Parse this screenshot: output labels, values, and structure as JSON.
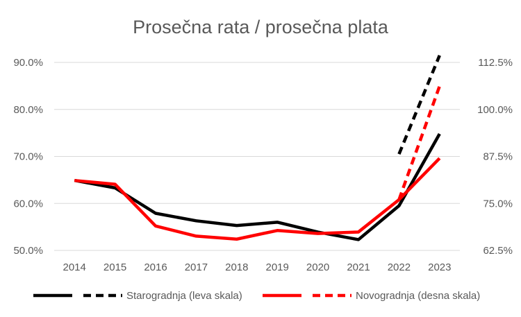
{
  "chart_data": {
    "type": "line",
    "title": "Prosečna rata / prosečna plata",
    "categories": [
      "2014",
      "2015",
      "2016",
      "2017",
      "2018",
      "2019",
      "2020",
      "2021",
      "2022",
      "2023"
    ],
    "y_left": {
      "ylim": [
        50,
        90
      ],
      "ticks": [
        50,
        60,
        70,
        80,
        90
      ],
      "tick_labels": [
        "50.0%",
        "60.0%",
        "70.0%",
        "80.0%",
        "90.0%"
      ]
    },
    "y_right": {
      "ylim": [
        62.5,
        112.5
      ],
      "ticks": [
        62.5,
        75,
        87.5,
        100,
        112.5
      ],
      "tick_labels": [
        "62.5%",
        "75.0%",
        "87.5%",
        "100.0%",
        "112.5%"
      ]
    },
    "grid": true,
    "legend_position": "bottom",
    "series": [
      {
        "name": "Starogradnja (leva skala)",
        "axis": "left",
        "color": "#000000",
        "values": [
          64.9,
          63.3,
          57.9,
          56.3,
          55.3,
          56.0,
          53.9,
          52.3,
          59.5,
          74.8
        ],
        "dashed_extension": {
          "categories": [
            "2022",
            "2023"
          ],
          "values": [
            70.5,
            91.5
          ]
        }
      },
      {
        "name": "Novogradnja (desna skala)",
        "axis": "right",
        "color": "#ff0000",
        "values": [
          81.1,
          80.1,
          69.0,
          66.3,
          65.5,
          67.8,
          67.0,
          67.4,
          76.0,
          87.0
        ],
        "dashed_extension": {
          "categories": [
            "2022",
            "2023"
          ],
          "values": [
            76.0,
            106.2
          ]
        }
      }
    ]
  }
}
